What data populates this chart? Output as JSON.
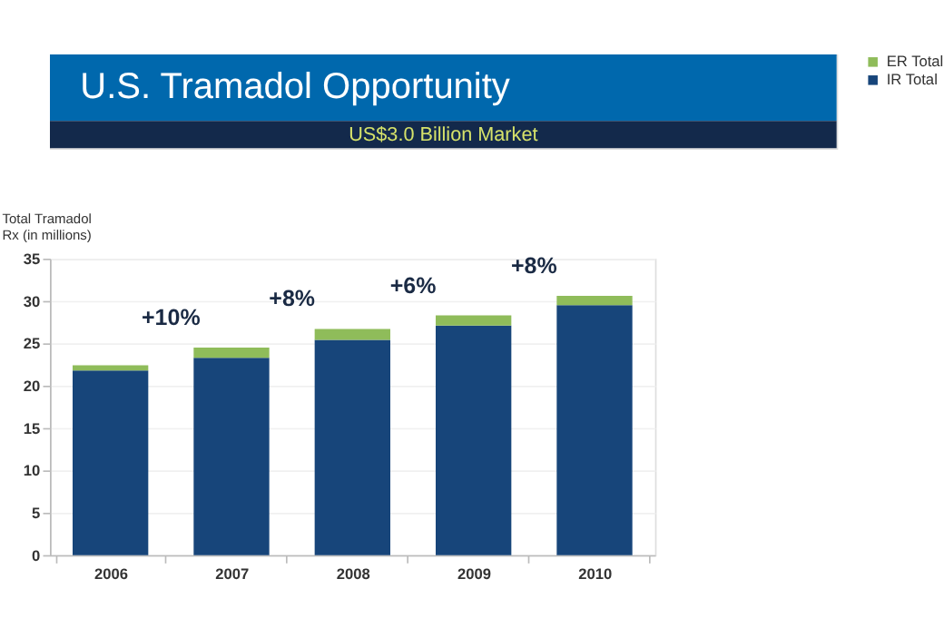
{
  "chart_data": {
    "type": "bar",
    "title": "U.S. Tramadol Opportunity",
    "subtitle": "US$3.0 Billion Market",
    "ylabel": "Total Tramadol\nRx (in millions)",
    "categories": [
      "2006",
      "2007",
      "2008",
      "2009",
      "2010"
    ],
    "series": [
      {
        "name": "IR Total",
        "color": "#17457a",
        "values": [
          21.8,
          23.3,
          25.4,
          27.1,
          29.5
        ]
      },
      {
        "name": "ER Total",
        "color": "#8fbc5a",
        "values": [
          0.6,
          1.2,
          1.3,
          1.2,
          1.1
        ]
      }
    ],
    "stacked": true,
    "ylim": [
      0,
      35
    ],
    "yticks": [
      0,
      5,
      10,
      15,
      20,
      25,
      30,
      35
    ],
    "grid": "y",
    "legend": "right",
    "annotations": [
      "+10%",
      "+8%",
      "+6%",
      "+8%"
    ]
  }
}
